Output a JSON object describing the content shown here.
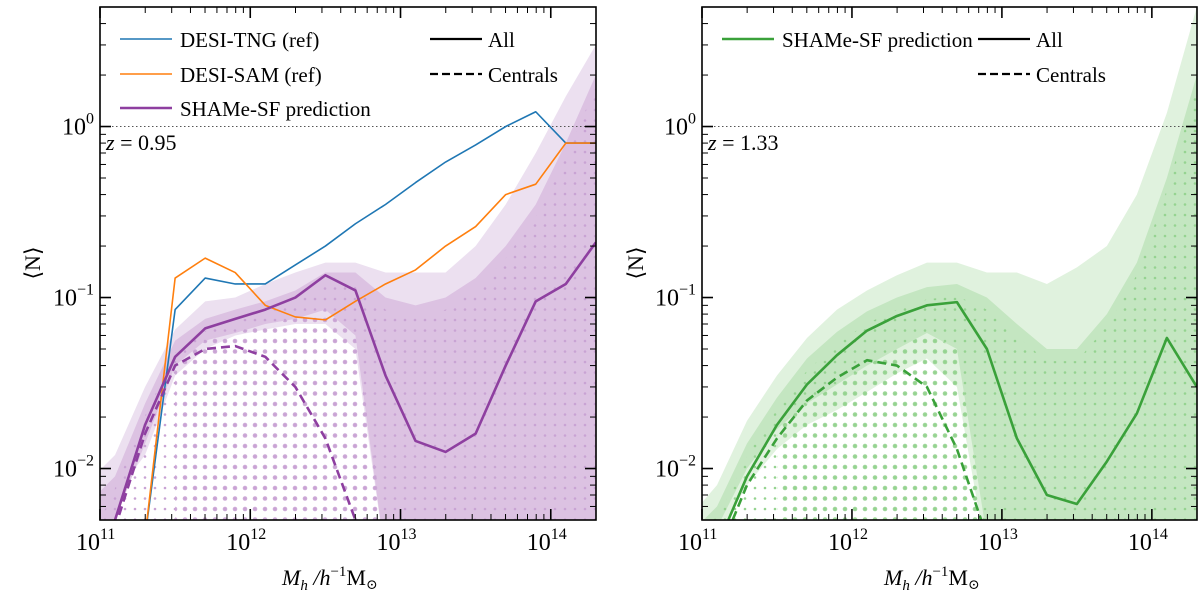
{
  "chart_data": [
    {
      "type": "line",
      "panel": "left",
      "title": "",
      "annotation": "z = 0.95",
      "annotation_parts": {
        "var": "z",
        "eq": " = 0.95"
      },
      "xlabel": "M_h /h^-1 M_sun",
      "xlabel_parts": {
        "m": "M",
        "sub": "h",
        "mid": " /h",
        "exp": "−1",
        "unit": "M",
        "sun": "⊙"
      },
      "ylabel": "⟨N⟩",
      "xscale": "log",
      "yscale": "log",
      "xlim": [
        100000000000.0,
        200000000000000.0
      ],
      "ylim": [
        0.005,
        5
      ],
      "reference_line": {
        "y": 1.0,
        "style": "dotted",
        "color": "#555555"
      },
      "x_ticks": [
        {
          "base": "10",
          "exp": "11"
        },
        {
          "base": "10",
          "exp": "12"
        },
        {
          "base": "10",
          "exp": "13"
        },
        {
          "base": "10",
          "exp": "14"
        }
      ],
      "y_ticks": [
        {
          "base": "10",
          "exp": "−2"
        },
        {
          "base": "10",
          "exp": "−1"
        },
        {
          "base": "10",
          "exp": "0"
        }
      ],
      "legend": [
        {
          "label": "DESI-TNG (ref)",
          "color": "#1f77b4",
          "style": "solid"
        },
        {
          "label": "DESI-SAM (ref)",
          "color": "#ff7f0e",
          "style": "solid"
        },
        {
          "label": "SHAMe-SF prediction",
          "color": "#8e3fa0",
          "style": "solid"
        }
      ],
      "style_legend": [
        {
          "label": "All",
          "style": "solid"
        },
        {
          "label": "Centrals",
          "style": "dashed"
        }
      ],
      "legend_position": "top",
      "logM": [
        10.9,
        11.1,
        11.3,
        11.5,
        11.7,
        11.9,
        12.1,
        12.3,
        12.5,
        12.7,
        12.9,
        13.1,
        13.3,
        13.5,
        13.7,
        13.9,
        14.1,
        14.3
      ],
      "series": [
        {
          "name": "DESI-TNG (ref)",
          "kind": "All",
          "color": "#1f77b4",
          "values": [
            null,
            null,
            0.004,
            0.085,
            0.13,
            0.12,
            0.12,
            0.155,
            0.2,
            0.27,
            0.35,
            0.47,
            0.62,
            0.78,
            1.0,
            1.22,
            0.8,
            0.8
          ]
        },
        {
          "name": "DESI-SAM (ref)",
          "kind": "All",
          "color": "#ff7f0e",
          "values": [
            null,
            null,
            0.004,
            0.13,
            0.17,
            0.14,
            0.09,
            0.077,
            0.074,
            0.095,
            0.12,
            0.145,
            0.2,
            0.26,
            0.4,
            0.46,
            0.8,
            0.8
          ]
        },
        {
          "name": "SHAMe-SF prediction",
          "kind": "All",
          "color": "#8e3fa0",
          "values": [
            0.003,
            0.005,
            0.018,
            0.045,
            0.066,
            0.075,
            0.085,
            0.1,
            0.135,
            0.11,
            0.035,
            0.0145,
            0.0125,
            0.016,
            0.04,
            0.095,
            0.12,
            0.21
          ]
        },
        {
          "name": "SHAMe-SF prediction",
          "kind": "Centrals",
          "color": "#8e3fa0",
          "dashed": true,
          "values": [
            0.003,
            0.0045,
            0.016,
            0.04,
            0.05,
            0.052,
            0.045,
            0.03,
            0.015,
            0.005,
            null,
            null,
            null,
            null,
            null,
            null,
            null,
            null
          ]
        }
      ],
      "bands": [
        {
          "name": "outer",
          "color": "#ece0f0",
          "lower": [
            0.003,
            0.007,
            0.012,
            0.035,
            0.05,
            0.06,
            0.065,
            0.07,
            0.07,
            0.05,
            0.003,
            0.003,
            0.003,
            0.003,
            0.003,
            0.003,
            0.003,
            0.003
          ],
          "upper": [
            0.008,
            0.012,
            0.03,
            0.065,
            0.095,
            0.1,
            0.12,
            0.14,
            0.16,
            0.16,
            0.14,
            0.14,
            0.14,
            0.2,
            0.35,
            0.7,
            1.5,
            3.0
          ]
        },
        {
          "name": "inner",
          "color": "#dcc2e2",
          "lower": [
            0.003,
            0.005,
            0.014,
            0.04,
            0.056,
            0.062,
            0.07,
            0.075,
            0.085,
            0.06,
            0.003,
            0.003,
            0.003,
            0.003,
            0.003,
            0.003,
            0.003,
            0.003
          ],
          "upper": [
            0.006,
            0.009,
            0.024,
            0.056,
            0.075,
            0.085,
            0.095,
            0.11,
            0.14,
            0.14,
            0.1,
            0.09,
            0.1,
            0.13,
            0.2,
            0.35,
            0.8,
            2.0
          ]
        }
      ],
      "dot_field": {
        "color": "#c79fd3",
        "from_logM": 11.0,
        "to_logM": 14.3
      }
    },
    {
      "type": "line",
      "panel": "right",
      "annotation": "z = 1.33",
      "annotation_parts": {
        "var": "z",
        "eq": " = 1.33"
      },
      "xlabel": "M_h /h^-1 M_sun",
      "xlabel_parts": {
        "m": "M",
        "sub": "h",
        "mid": " /h",
        "exp": "−1",
        "unit": "M",
        "sun": "⊙"
      },
      "ylabel": "⟨N⟩",
      "xscale": "log",
      "yscale": "log",
      "xlim": [
        100000000000.0,
        200000000000000.0
      ],
      "ylim": [
        0.005,
        5
      ],
      "reference_line": {
        "y": 1.0,
        "style": "dotted",
        "color": "#555555"
      },
      "x_ticks": [
        {
          "base": "10",
          "exp": "11"
        },
        {
          "base": "10",
          "exp": "12"
        },
        {
          "base": "10",
          "exp": "13"
        },
        {
          "base": "10",
          "exp": "14"
        }
      ],
      "y_ticks": [
        {
          "base": "10",
          "exp": "−2"
        },
        {
          "base": "10",
          "exp": "−1"
        },
        {
          "base": "10",
          "exp": "0"
        }
      ],
      "legend": [
        {
          "label": "SHAMe-SF prediction",
          "color": "#3aa13a",
          "style": "solid"
        }
      ],
      "style_legend": [
        {
          "label": "All",
          "style": "solid"
        },
        {
          "label": "Centrals",
          "style": "dashed"
        }
      ],
      "legend_position": "top",
      "logM": [
        10.9,
        11.1,
        11.3,
        11.5,
        11.7,
        11.9,
        12.1,
        12.3,
        12.5,
        12.7,
        12.9,
        13.1,
        13.3,
        13.5,
        13.7,
        13.9,
        14.1,
        14.3
      ],
      "series": [
        {
          "name": "SHAMe-SF prediction",
          "kind": "All",
          "color": "#3aa13a",
          "values": [
            0.002,
            0.0035,
            0.009,
            0.018,
            0.031,
            0.046,
            0.064,
            0.078,
            0.09,
            0.094,
            0.05,
            0.015,
            0.007,
            0.0062,
            0.011,
            0.021,
            0.058,
            0.03
          ]
        },
        {
          "name": "SHAMe-SF prediction",
          "kind": "Centrals",
          "color": "#3aa13a",
          "dashed": true,
          "values": [
            0.002,
            0.003,
            0.008,
            0.015,
            0.025,
            0.034,
            0.043,
            0.04,
            0.03,
            0.013,
            0.004,
            null,
            null,
            null,
            null,
            null,
            null,
            null
          ]
        }
      ],
      "bands": [
        {
          "name": "outer",
          "color": "#e0f2de",
          "lower": [
            0.003,
            0.004,
            0.008,
            0.013,
            0.018,
            0.022,
            0.028,
            0.036,
            0.044,
            0.03,
            0.003,
            0.003,
            0.003,
            0.003,
            0.003,
            0.003,
            0.003,
            0.003
          ],
          "upper": [
            0.005,
            0.008,
            0.019,
            0.035,
            0.058,
            0.085,
            0.11,
            0.135,
            0.16,
            0.16,
            0.14,
            0.14,
            0.12,
            0.15,
            0.2,
            0.4,
            1.2,
            5.0
          ]
        },
        {
          "name": "inner",
          "color": "#c4e6c1",
          "lower": [
            0.003,
            0.0045,
            0.01,
            0.017,
            0.024,
            0.031,
            0.04,
            0.05,
            0.062,
            0.05,
            0.004,
            0.003,
            0.003,
            0.003,
            0.003,
            0.003,
            0.003,
            0.003
          ],
          "upper": [
            0.004,
            0.006,
            0.014,
            0.026,
            0.044,
            0.063,
            0.083,
            0.1,
            0.115,
            0.12,
            0.1,
            0.07,
            0.05,
            0.05,
            0.08,
            0.16,
            0.5,
            2.0
          ]
        }
      ],
      "dot_field": {
        "color": "#8fcf8a",
        "from_logM": 11.0,
        "to_logM": 14.3
      }
    }
  ]
}
